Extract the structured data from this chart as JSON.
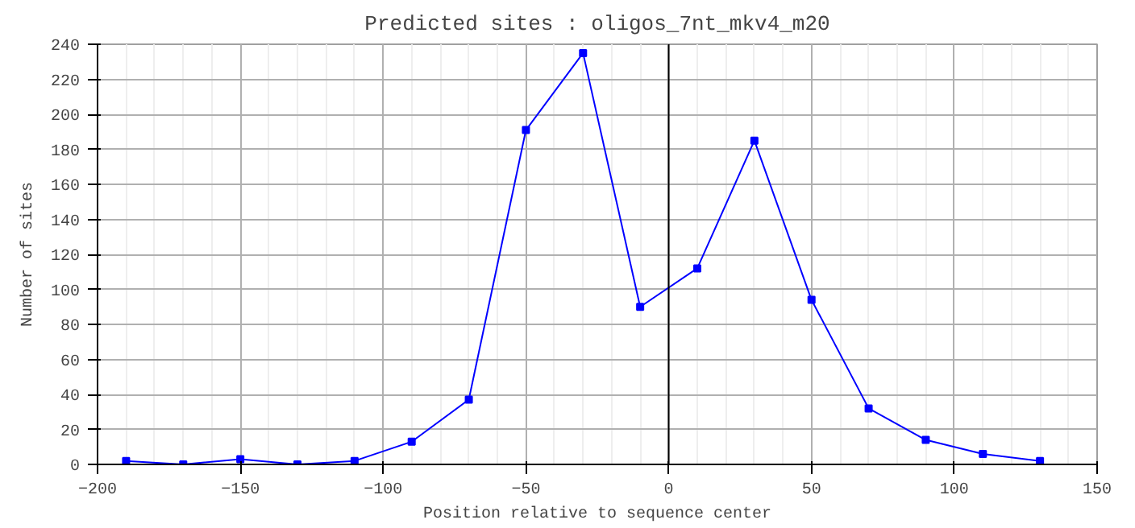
{
  "chart_data": {
    "type": "line",
    "title": "Predicted sites : oligos_7nt_mkv4_m20",
    "xlabel": "Position relative to sequence center",
    "ylabel": "Number of sites",
    "x": [
      -190,
      -170,
      -150,
      -130,
      -110,
      -90,
      -70,
      -50,
      -30,
      -10,
      10,
      30,
      50,
      70,
      90,
      110,
      130
    ],
    "series": [
      {
        "color": "#0000ff",
        "values": [
          2,
          0,
          3,
          0,
          2,
          13,
          37,
          191,
          235,
          90,
          112,
          185,
          94,
          32,
          14,
          6,
          2
        ]
      }
    ],
    "xlim": [
      -200,
      150
    ],
    "ylim": [
      0,
      240
    ],
    "xticks": [
      -200,
      -150,
      -100,
      -50,
      0,
      50,
      100,
      150
    ],
    "yticks": [
      0,
      20,
      40,
      60,
      80,
      100,
      120,
      140,
      160,
      180,
      200,
      220,
      240
    ],
    "ref_lines": [
      {
        "axis": "x",
        "value": 0,
        "color": "#000000"
      }
    ],
    "grid": true,
    "marker": "square",
    "line_style": "solid"
  }
}
